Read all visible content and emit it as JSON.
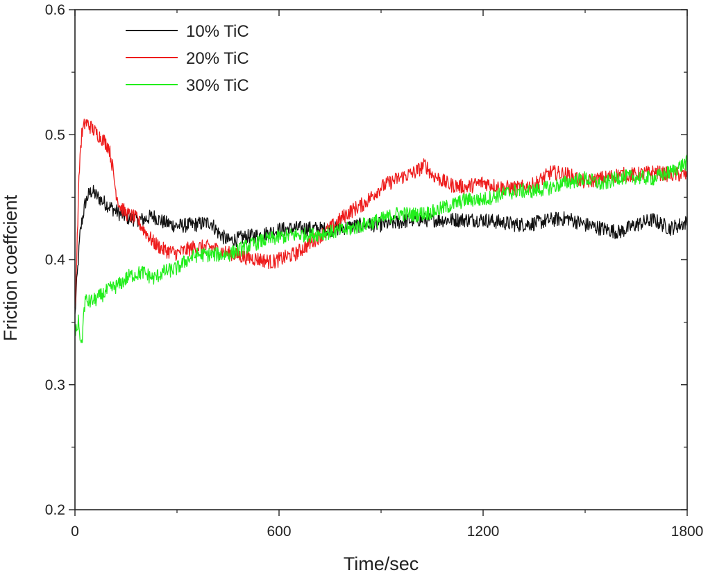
{
  "chart_data": {
    "type": "line",
    "title": "",
    "xlabel": "Time/sec",
    "ylabel": "Friction coeffcient",
    "xlim": [
      0,
      1800
    ],
    "ylim": [
      0.2,
      0.6
    ],
    "xticks": [
      0,
      600,
      1200,
      1800
    ],
    "xtick_labels": [
      "0",
      "600",
      "1200",
      "1800"
    ],
    "yticks": [
      0.2,
      0.3,
      0.4,
      0.5,
      0.6
    ],
    "ytick_labels": [
      "0.2",
      "0.3",
      "0.4",
      "0.5",
      "0.6"
    ],
    "grid": false,
    "legend_position": "top-left",
    "series": [
      {
        "name": "10% TiC",
        "color": "#111111",
        "x": [
          0,
          5,
          10,
          15,
          20,
          30,
          40,
          50,
          60,
          80,
          100,
          130,
          160,
          200,
          230,
          260,
          300,
          350,
          400,
          420,
          450,
          500,
          550,
          600,
          650,
          700,
          750,
          800,
          850,
          900,
          950,
          1000,
          1050,
          1100,
          1150,
          1200,
          1250,
          1300,
          1350,
          1400,
          1450,
          1500,
          1550,
          1600,
          1650,
          1700,
          1750,
          1800
        ],
        "y": [
          0.355,
          0.38,
          0.4,
          0.42,
          0.43,
          0.445,
          0.452,
          0.455,
          0.452,
          0.447,
          0.443,
          0.437,
          0.433,
          0.432,
          0.435,
          0.43,
          0.427,
          0.428,
          0.43,
          0.422,
          0.415,
          0.418,
          0.42,
          0.424,
          0.425,
          0.425,
          0.424,
          0.426,
          0.428,
          0.428,
          0.43,
          0.432,
          0.432,
          0.432,
          0.432,
          0.432,
          0.43,
          0.428,
          0.429,
          0.432,
          0.433,
          0.428,
          0.425,
          0.422,
          0.428,
          0.432,
          0.425,
          0.43
        ]
      },
      {
        "name": "20% TiC",
        "color": "#ee1c1c",
        "x": [
          0,
          5,
          10,
          15,
          20,
          30,
          40,
          60,
          80,
          100,
          110,
          120,
          130,
          150,
          180,
          200,
          230,
          260,
          300,
          350,
          400,
          450,
          500,
          550,
          580,
          600,
          650,
          700,
          750,
          800,
          850,
          900,
          950,
          1000,
          1030,
          1050,
          1100,
          1150,
          1200,
          1250,
          1300,
          1350,
          1400,
          1450,
          1500,
          1550,
          1600,
          1650,
          1700,
          1750,
          1800
        ],
        "y": [
          0.36,
          0.4,
          0.45,
          0.485,
          0.5,
          0.51,
          0.508,
          0.502,
          0.497,
          0.49,
          0.475,
          0.455,
          0.444,
          0.437,
          0.433,
          0.425,
          0.414,
          0.408,
          0.405,
          0.41,
          0.41,
          0.405,
          0.402,
          0.4,
          0.398,
          0.4,
          0.405,
          0.415,
          0.425,
          0.437,
          0.445,
          0.458,
          0.465,
          0.47,
          0.476,
          0.468,
          0.46,
          0.458,
          0.462,
          0.458,
          0.457,
          0.46,
          0.47,
          0.468,
          0.462,
          0.465,
          0.468,
          0.468,
          0.47,
          0.468,
          0.468
        ]
      },
      {
        "name": "30% TiC",
        "color": "#22ee1c",
        "x": [
          0,
          5,
          10,
          15,
          20,
          25,
          30,
          40,
          60,
          80,
          100,
          130,
          160,
          200,
          230,
          260,
          300,
          330,
          360,
          400,
          450,
          500,
          550,
          600,
          650,
          700,
          750,
          800,
          850,
          900,
          950,
          1000,
          1050,
          1100,
          1150,
          1200,
          1250,
          1300,
          1350,
          1400,
          1450,
          1500,
          1550,
          1600,
          1650,
          1700,
          1750,
          1800
        ],
        "y": [
          0.342,
          0.345,
          0.35,
          0.34,
          0.33,
          0.355,
          0.368,
          0.366,
          0.368,
          0.372,
          0.376,
          0.38,
          0.387,
          0.39,
          0.385,
          0.39,
          0.393,
          0.4,
          0.404,
          0.404,
          0.404,
          0.41,
          0.415,
          0.418,
          0.42,
          0.42,
          0.422,
          0.424,
          0.428,
          0.432,
          0.437,
          0.436,
          0.438,
          0.443,
          0.448,
          0.448,
          0.452,
          0.455,
          0.455,
          0.458,
          0.462,
          0.465,
          0.46,
          0.466,
          0.466,
          0.465,
          0.47,
          0.478
        ]
      }
    ]
  }
}
